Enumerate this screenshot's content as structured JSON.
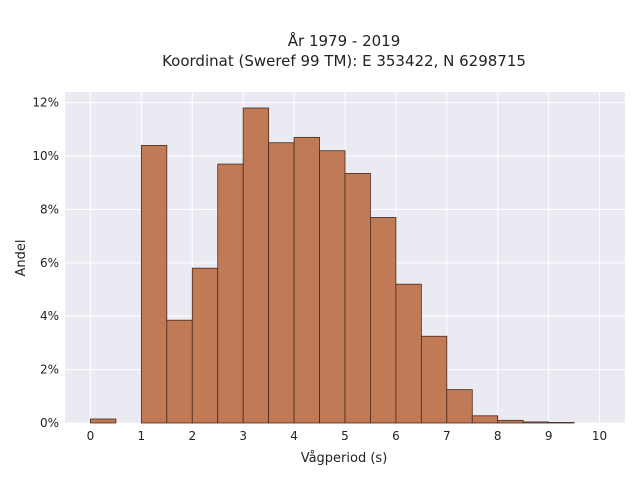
{
  "chart_data": {
    "type": "bar",
    "title": "År 1979 - 2019",
    "subtitle": "Koordinat (Sweref 99 TM): E 353422, N 6298715",
    "xlabel": "Vågperiod (s)",
    "ylabel": "Andel",
    "xlim": [
      -0.5,
      10.5
    ],
    "ylim": [
      0,
      12.4
    ],
    "x_ticks": [
      0,
      1,
      2,
      3,
      4,
      5,
      6,
      7,
      8,
      9,
      10
    ],
    "y_ticks": [
      0,
      2,
      4,
      6,
      8,
      10,
      12
    ],
    "y_tick_labels": [
      "0%",
      "2%",
      "4%",
      "6%",
      "8%",
      "10%",
      "12%"
    ],
    "bin_width": 0.5,
    "bin_starts": [
      0,
      0.5,
      1,
      1.5,
      2,
      2.5,
      3,
      3.5,
      4,
      4.5,
      5,
      5.5,
      6,
      6.5,
      7,
      7.5,
      8,
      8.5,
      9,
      9.5
    ],
    "values": [
      0.15,
      0,
      10.4,
      3.85,
      5.8,
      9.7,
      11.8,
      10.5,
      10.7,
      10.2,
      9.35,
      7.7,
      5.2,
      3.25,
      1.25,
      0.27,
      0.1,
      0.04,
      0.02,
      0
    ],
    "grid": true,
    "colors": {
      "bar": "#c07a56",
      "bar_edge": "#4a2a1c",
      "plot_bg": "#eaeaf2",
      "grid": "#ffffff"
    }
  }
}
